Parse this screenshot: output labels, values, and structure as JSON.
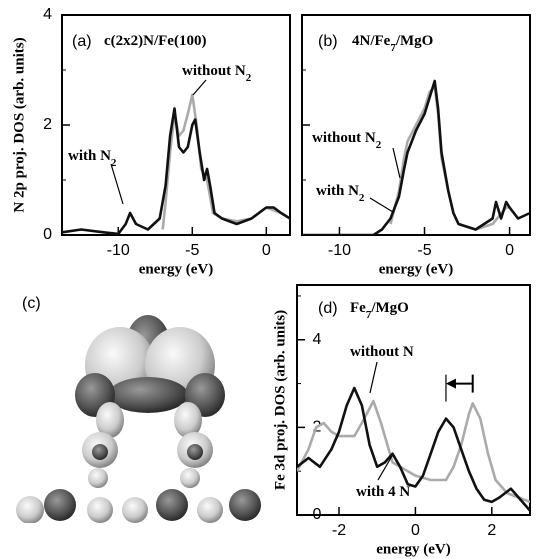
{
  "chart_data": [
    {
      "type": "line",
      "panel": "(a)",
      "title": [
        "c(2x2)N/Fe(100)"
      ],
      "xlabel": "energy (eV)",
      "ylabel": "N 2p proj. DOS (arb. units)",
      "xlim": [
        -13.8,
        1.6
      ],
      "ylim": [
        0,
        4
      ],
      "xticks": [
        -10,
        -5,
        0
      ],
      "yticks": [
        0,
        2,
        4
      ],
      "yticks_minor": [
        1,
        3
      ],
      "ytick_labels": true,
      "series": [
        {
          "name": [
            "with N",
            "2"
          ],
          "color": "#111111",
          "x": [
            -13.8,
            -12.5,
            -11,
            -10,
            -9.5,
            -9.2,
            -8.8,
            -8,
            -7.2,
            -6.8,
            -6.5,
            -6.2,
            -5.9,
            -5.6,
            -5.3,
            -5.0,
            -4.8,
            -4.5,
            -4.2,
            -4.0,
            -3.8,
            -3.5,
            -3,
            -2,
            -1,
            0,
            0.5,
            1,
            1.6
          ],
          "values": [
            0.05,
            0.1,
            0.05,
            0.02,
            0.2,
            0.4,
            0.2,
            0.1,
            0.3,
            0.9,
            1.8,
            2.3,
            1.6,
            1.5,
            1.6,
            2.0,
            2.1,
            1.5,
            1.0,
            1.2,
            0.9,
            0.4,
            0.3,
            0.2,
            0.3,
            0.5,
            0.5,
            0.4,
            0.3
          ]
        },
        {
          "name": [
            "without N",
            "2"
          ],
          "color": "#aaaaaa",
          "x": [
            -7,
            -6.8,
            -6.5,
            -6.2,
            -5.9,
            -5.6,
            -5.3,
            -5.0,
            -4.7,
            -4.4,
            -4.0,
            -3.6,
            -3,
            -2,
            -1,
            0,
            1,
            1.6
          ],
          "values": [
            0.1,
            0.6,
            1.5,
            2.2,
            1.8,
            1.9,
            2.2,
            2.55,
            2.0,
            1.2,
            1.0,
            0.4,
            0.3,
            0.25,
            0.3,
            0.5,
            0.4,
            0.3
          ]
        }
      ]
    },
    {
      "type": "line",
      "panel": "(b)",
      "title": [
        "4N/Fe",
        "7",
        "/MgO"
      ],
      "xlabel": "energy (eV)",
      "xlim": [
        -12.2,
        1.2
      ],
      "ylim": [
        0,
        4
      ],
      "xticks": [
        -10,
        -5,
        0
      ],
      "yticks": [
        0,
        2,
        4
      ],
      "yticks_minor": [
        1,
        3
      ],
      "ytick_labels": false,
      "series": [
        {
          "name": [
            "with N",
            "2"
          ],
          "color": "#111111",
          "x": [
            -12.2,
            -8,
            -7.5,
            -7,
            -6.5,
            -6.2,
            -6,
            -5.5,
            -5,
            -4.7,
            -4.4,
            -4.2,
            -4,
            -3.6,
            -3.3,
            -3,
            -2,
            -1,
            -0.8,
            -0.5,
            -0.2,
            0,
            0.5,
            1.2
          ],
          "values": [
            0,
            0,
            0.1,
            0.3,
            0.7,
            1.2,
            1.5,
            1.9,
            2.2,
            2.5,
            2.8,
            2.3,
            1.5,
            0.8,
            0.4,
            0.2,
            0.1,
            0.3,
            0.6,
            0.3,
            0.6,
            0.5,
            0.3,
            0.4
          ]
        },
        {
          "name": [
            "without N",
            "2"
          ],
          "color": "#aaaaaa",
          "x": [
            -7,
            -6.5,
            -6.2,
            -6,
            -5.5,
            -5,
            -4.7,
            -4.4,
            -4.2,
            -4,
            -3.6,
            -3.3,
            -3,
            -2,
            -1,
            -0.2,
            0,
            0.5
          ],
          "values": [
            0.2,
            0.8,
            1.4,
            1.7,
            2.0,
            2.3,
            2.6,
            2.7,
            2.2,
            1.4,
            0.8,
            0.4,
            0.2,
            0.1,
            0.2,
            0.5,
            0.5,
            0.3
          ]
        }
      ]
    },
    {
      "type": "line",
      "panel": "(d)",
      "title": [
        "Fe",
        "7",
        "/MgO"
      ],
      "xlabel": "energy (eV)",
      "ylabel": "Fe 3d proj. DOS (arb. units)",
      "xlim": [
        -3.1,
        3.0
      ],
      "ylim": [
        0,
        5.25
      ],
      "xticks": [
        -2,
        0,
        2
      ],
      "yticks": [
        0,
        2,
        4
      ],
      "yticks_minor": [
        1,
        3,
        5
      ],
      "ytick_labels": true,
      "shift_arrow": {
        "from": 1.5,
        "to": 0.8,
        "y": 3.0
      },
      "series": [
        {
          "name": [
            "with 4 N"
          ],
          "color": "#111111",
          "x": [
            -3.1,
            -2.8,
            -2.5,
            -2.2,
            -2,
            -1.8,
            -1.6,
            -1.4,
            -1.2,
            -1,
            -0.8,
            -0.6,
            -0.4,
            -0.2,
            0,
            0.2,
            0.4,
            0.6,
            0.8,
            1.0,
            1.2,
            1.4,
            1.6,
            1.8,
            2.0,
            2.2,
            2.5,
            2.8,
            3.0
          ],
          "values": [
            1.1,
            1.3,
            1.1,
            1.5,
            1.9,
            2.5,
            2.9,
            2.5,
            1.6,
            1.1,
            1.2,
            1.4,
            1.1,
            0.7,
            0.65,
            0.9,
            1.4,
            1.9,
            2.2,
            2.0,
            1.5,
            1.0,
            0.6,
            0.35,
            0.3,
            0.4,
            0.6,
            0.3,
            0.1
          ]
        },
        {
          "name": [
            "without N"
          ],
          "color": "#aaaaaa",
          "x": [
            -3.1,
            -2.8,
            -2.6,
            -2.4,
            -2.2,
            -2,
            -1.6,
            -1.4,
            -1.1,
            -0.9,
            -0.6,
            -0.4,
            -0.2,
            0,
            0.4,
            0.8,
            1.0,
            1.2,
            1.4,
            1.5,
            1.7,
            1.9,
            2.1,
            2.4,
            2.7,
            3.0
          ],
          "values": [
            1.0,
            1.5,
            2.0,
            2.1,
            1.9,
            1.8,
            1.8,
            2.1,
            2.6,
            2.1,
            1.2,
            1.1,
            1.0,
            0.9,
            0.8,
            0.8,
            1.1,
            1.6,
            2.3,
            2.55,
            2.2,
            1.4,
            0.8,
            0.5,
            0.4,
            0.3
          ]
        }
      ]
    }
  ],
  "panel_c": {
    "label": "(c)"
  }
}
